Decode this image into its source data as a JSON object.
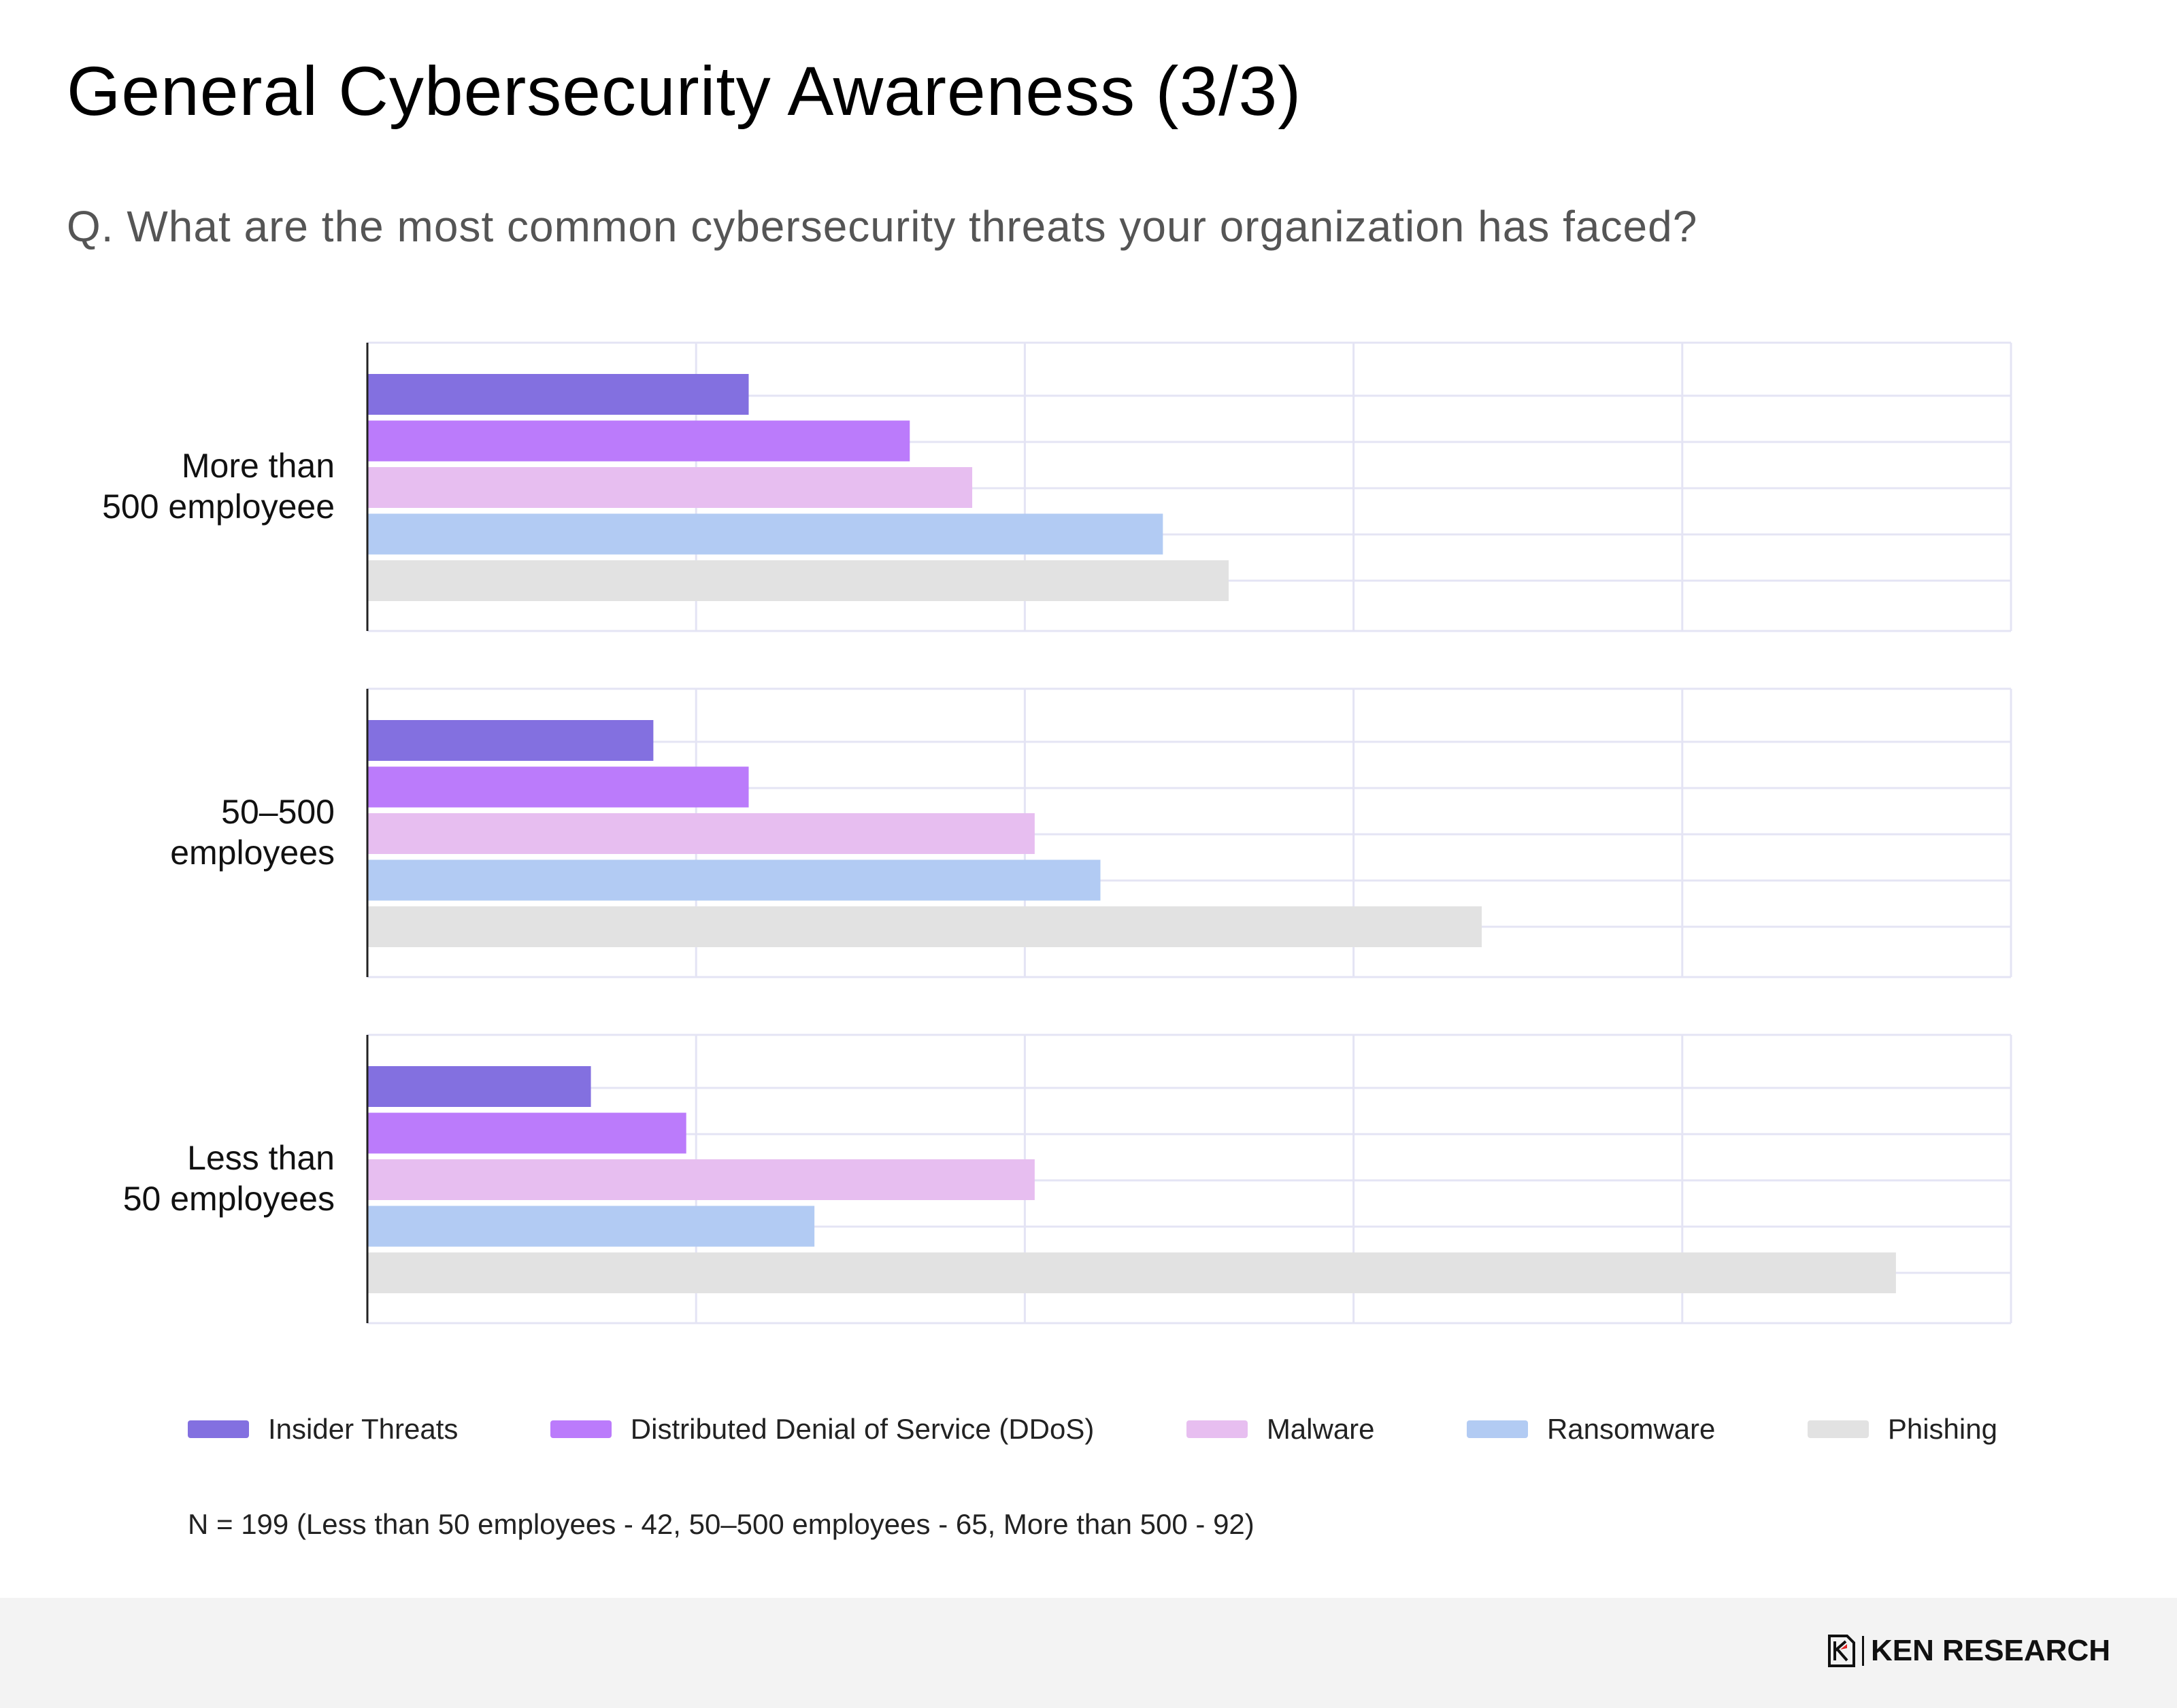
{
  "title": "General Cybersecurity Awareness (3/3)",
  "question": "Q. What are the most common cybersecurity threats your organization has faced?",
  "colors": {
    "insider": "#8370e0",
    "ddos": "#bb7bfb",
    "malware": "#e7bef0",
    "ransomware": "#b2cbf3",
    "phishing": "#e2e2e2",
    "grid": "#e4e4f4"
  },
  "chart_data": {
    "type": "bar",
    "orientation": "horizontal",
    "title": "Q. What are the most common cybersecurity threats your organization has faced?",
    "xlim": [
      0,
      50
    ],
    "gridlines_x": [
      0,
      10,
      20,
      30,
      40,
      50
    ],
    "tick_labels_visible": false,
    "legend_position": "bottom",
    "groups": [
      {
        "label_line1": "More than",
        "label_line2": "500  employeee",
        "values": {
          "Insider Threats": 11.6,
          "Distributed Denial of Service (DDoS)": 16.5,
          "Malware": 18.4,
          "Ransomware": 24.2,
          "Phishing": 26.2
        }
      },
      {
        "label_line1": "50–500",
        "label_line2": "employees",
        "values": {
          "Insider Threats": 8.7,
          "Distributed Denial of Service (DDoS)": 11.6,
          "Malware": 20.3,
          "Ransomware": 22.3,
          "Phishing": 33.9
        }
      },
      {
        "label_line1": "Less than",
        "label_line2": "50 employees",
        "values": {
          "Insider Threats": 6.8,
          "Distributed Denial of Service (DDoS)": 9.7,
          "Malware": 20.3,
          "Ransomware": 13.6,
          "Phishing": 46.5
        }
      }
    ],
    "series": [
      {
        "name": "Insider Threats",
        "color": "#8370e0"
      },
      {
        "name": "Distributed Denial of Service (DDoS)",
        "color": "#bb7bfb"
      },
      {
        "name": "Malware",
        "color": "#e7bef0"
      },
      {
        "name": "Ransomware",
        "color": "#b2cbf3"
      },
      {
        "name": "Phishing",
        "color": "#e2e2e2"
      }
    ]
  },
  "legend": [
    {
      "label": "Insider Threats",
      "color": "#8370e0"
    },
    {
      "label": "Distributed Denial of Service (DDoS)",
      "color": "#bb7bfb"
    },
    {
      "label": "Malware",
      "color": "#e7bef0"
    },
    {
      "label": "Ransomware",
      "color": "#b2cbf3"
    },
    {
      "label": "Phishing",
      "color": "#e2e2e2"
    }
  ],
  "footnote": "N = 199 (Less than 50 employees - 42, 50–500 employees - 65, More than 500 - 92)",
  "brand": {
    "name": "KEN RESEARCH"
  }
}
